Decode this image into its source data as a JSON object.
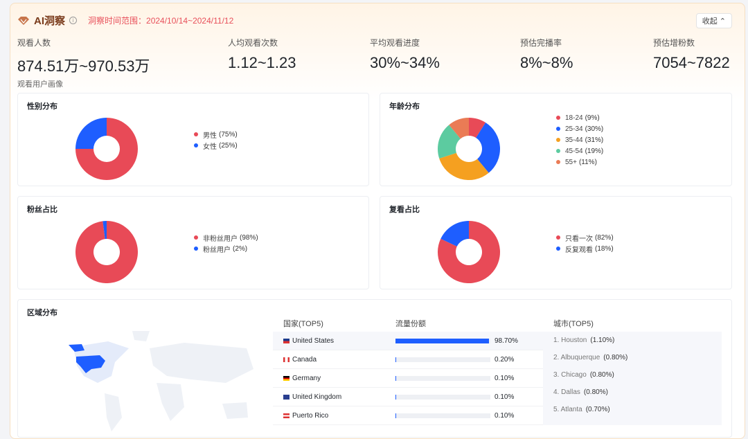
{
  "header": {
    "title": "AI洞察",
    "range": "洞察时间范围：2024/10/14~2024/11/12",
    "collapse": "收起 ⌃"
  },
  "metrics": [
    {
      "label": "观看人数",
      "value": "874.51万~970.53万"
    },
    {
      "label": "人均观看次数",
      "value": "1.12~1.23"
    },
    {
      "label": "平均观看进度",
      "value": "30%~34%"
    },
    {
      "label": "预估完播率",
      "value": "8%~8%"
    },
    {
      "label": "预估增粉数",
      "value": "7054~7822"
    }
  ],
  "section": "观看用户画像",
  "chart_data": [
    {
      "type": "pie",
      "title": "性别分布",
      "slices": [
        {
          "label": "男性",
          "value": 75,
          "color": "#e84a57"
        },
        {
          "label": "女性",
          "value": 25,
          "color": "#1e5eff"
        }
      ]
    },
    {
      "type": "pie",
      "title": "年龄分布",
      "slices": [
        {
          "label": "18-24",
          "value": 9,
          "color": "#e84a57"
        },
        {
          "label": "25-34",
          "value": 30,
          "color": "#1e5eff"
        },
        {
          "label": "35-44",
          "value": 31,
          "color": "#f5a020"
        },
        {
          "label": "45-54",
          "value": 19,
          "color": "#5ccba0"
        },
        {
          "label": "55+",
          "value": 11,
          "color": "#ea7b55"
        }
      ]
    },
    {
      "type": "pie",
      "title": "粉丝占比",
      "slices": [
        {
          "label": "非粉丝用户",
          "value": 98,
          "color": "#e84a57"
        },
        {
          "label": "粉丝用户",
          "value": 2,
          "color": "#1e5eff"
        }
      ]
    },
    {
      "type": "pie",
      "title": "复看占比",
      "slices": [
        {
          "label": "只看一次",
          "value": 82,
          "color": "#e84a57"
        },
        {
          "label": "反复观看",
          "value": 18,
          "color": "#1e5eff"
        }
      ]
    }
  ],
  "region": {
    "title": "区域分布",
    "headers": {
      "country": "国家(TOP5)",
      "share": "流量份额",
      "city": "城市(TOP5)"
    },
    "countries": [
      {
        "name": "United States",
        "pct": "98.70%",
        "value": 98.7,
        "flag": "us"
      },
      {
        "name": "Canada",
        "pct": "0.20%",
        "value": 0.2,
        "flag": "ca"
      },
      {
        "name": "Germany",
        "pct": "0.10%",
        "value": 0.1,
        "flag": "de"
      },
      {
        "name": "United Kingdom",
        "pct": "0.10%",
        "value": 0.1,
        "flag": "gb"
      },
      {
        "name": "Puerto Rico",
        "pct": "0.10%",
        "value": 0.1,
        "flag": "pr"
      }
    ],
    "cities": [
      {
        "name": "1. Houston",
        "pct": "(1.10%)"
      },
      {
        "name": "2. Albuquerque",
        "pct": "(0.80%)"
      },
      {
        "name": "3. Chicago",
        "pct": "(0.80%)"
      },
      {
        "name": "4. Dallas",
        "pct": "(0.80%)"
      },
      {
        "name": "5. Atlanta",
        "pct": "(0.70%)"
      }
    ]
  }
}
